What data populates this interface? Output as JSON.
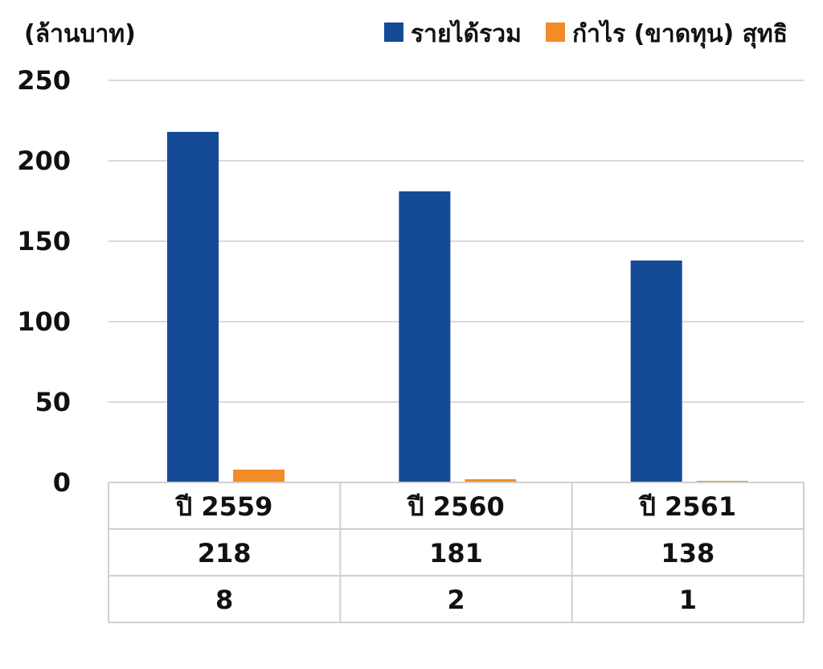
{
  "chart_data": {
    "type": "bar",
    "y_unit_label": "(ล้านบาท)",
    "categories": [
      "ปี 2559",
      "ปี 2560",
      "ปี 2561"
    ],
    "series": [
      {
        "name": "รายได้รวม",
        "values": [
          218,
          181,
          138
        ],
        "color": "#154A96"
      },
      {
        "name": "กำไร (ขาดทุน) สุทธิ",
        "values": [
          8,
          2,
          1
        ],
        "color": "#F28C28"
      }
    ],
    "ylim": [
      0,
      250
    ],
    "yticks": [
      0,
      50,
      100,
      150,
      200,
      250
    ],
    "grid": true,
    "legend": "top-right",
    "data_table": {
      "rows": [
        {
          "series": "รายได้รวม",
          "values": [
            "218",
            "181",
            "138"
          ]
        },
        {
          "series": "กำไร (ขาดทุน) สุทธิ",
          "values": [
            "8",
            "2",
            "1"
          ]
        }
      ]
    }
  }
}
